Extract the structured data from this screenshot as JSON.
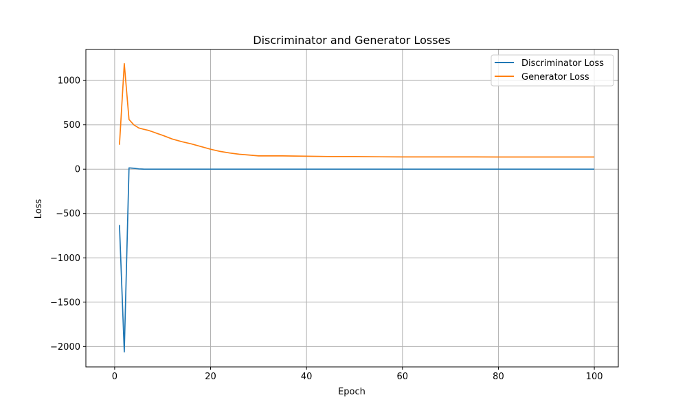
{
  "chart_data": {
    "type": "line",
    "title": "Discriminator and Generator Losses",
    "xlabel": "Epoch",
    "ylabel": "Loss",
    "xlim": [
      -6,
      105
    ],
    "ylim": [
      -2230,
      1350
    ],
    "xticks": [
      0,
      20,
      40,
      60,
      80,
      100
    ],
    "yticks": [
      -2000,
      -1500,
      -1000,
      -500,
      0,
      500,
      1000
    ],
    "ytick_labels": [
      "−2000",
      "−1500",
      "−1000",
      "−500",
      "0",
      "500",
      "1000"
    ],
    "grid": true,
    "legend_position": "top-right",
    "x": [
      1,
      2,
      3,
      4,
      5,
      6,
      7,
      8,
      9,
      10,
      12,
      14,
      16,
      18,
      20,
      22,
      24,
      26,
      28,
      30,
      35,
      40,
      45,
      50,
      55,
      60,
      65,
      70,
      75,
      80,
      85,
      90,
      95,
      100
    ],
    "series": [
      {
        "name": "Discriminator Loss",
        "color": "#1f77b4",
        "values": [
          -630,
          -2060,
          15,
          10,
          3,
          1,
          0,
          0,
          0,
          0,
          0,
          0,
          0,
          0,
          0,
          0,
          0,
          0,
          0,
          0,
          0,
          0,
          0,
          0,
          0,
          0,
          0,
          0,
          0,
          0,
          0,
          0,
          0,
          0
        ]
      },
      {
        "name": "Generator Loss",
        "color": "#ff7f0e",
        "values": [
          275,
          1190,
          560,
          500,
          465,
          450,
          438,
          420,
          400,
          382,
          340,
          310,
          285,
          255,
          225,
          200,
          182,
          168,
          160,
          150,
          150,
          146,
          143,
          143,
          140,
          138,
          138,
          138,
          138,
          137,
          137,
          137,
          137,
          137
        ]
      }
    ]
  }
}
